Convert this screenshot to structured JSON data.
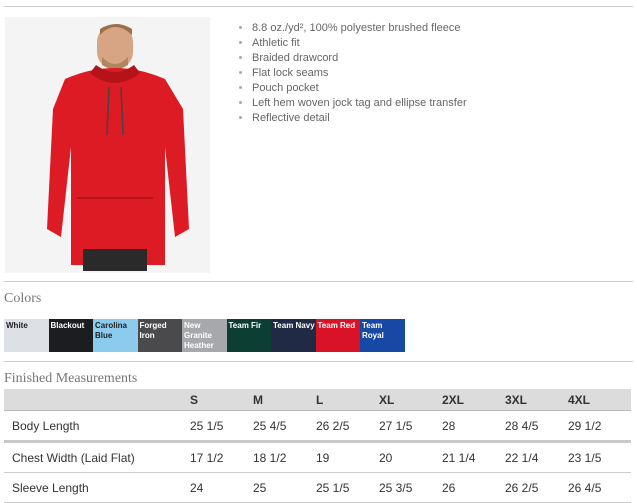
{
  "features": [
    "8.8 oz./yd², 100% polyester brushed fleece",
    "Athletic fit",
    "Braided drawcord",
    "Flat lock seams",
    "Pouch pocket",
    "Left hem woven jock tag and ellipse transfer",
    "Reflective detail"
  ],
  "colors_title": "Colors",
  "colors": [
    {
      "name": "White",
      "bg": "#dde0e4",
      "fg": "#222"
    },
    {
      "name": "Blackout",
      "bg": "#1c1d21",
      "fg": "#fff"
    },
    {
      "name": "Carolina Blue",
      "bg": "#8ccbee",
      "fg": "#222"
    },
    {
      "name": "Forged Iron",
      "bg": "#4a4a4c",
      "fg": "#fff"
    },
    {
      "name": "New Granite Heather",
      "bg": "#a7a8ab",
      "fg": "#fff"
    },
    {
      "name": "Team Fir",
      "bg": "#0c3e34",
      "fg": "#fff"
    },
    {
      "name": "Team Navy",
      "bg": "#202a44",
      "fg": "#fff"
    },
    {
      "name": "Team Red",
      "bg": "#da1228",
      "fg": "#fff"
    },
    {
      "name": "Team Royal",
      "bg": "#1648a4",
      "fg": "#fff"
    }
  ],
  "measurements_title": "Finished Measurements",
  "sizes": [
    "S",
    "M",
    "L",
    "XL",
    "2XL",
    "3XL",
    "4XL"
  ],
  "rows": [
    {
      "label": "Body Length",
      "values": [
        "25 1/5",
        "25 4/5",
        "26 2/5",
        "27 1/5",
        "28",
        "28 4/5",
        "29 1/2"
      ]
    },
    {
      "label": "Chest Width (Laid Flat)",
      "values": [
        "17 1/2",
        "18 1/2",
        "19",
        "20",
        "21 1/4",
        "22 1/4",
        "23 1/5"
      ]
    },
    {
      "label": "Sleeve Length",
      "values": [
        "24",
        "25",
        "25 1/5",
        "25 3/5",
        "26",
        "26 2/5",
        "26 4/5"
      ]
    }
  ]
}
